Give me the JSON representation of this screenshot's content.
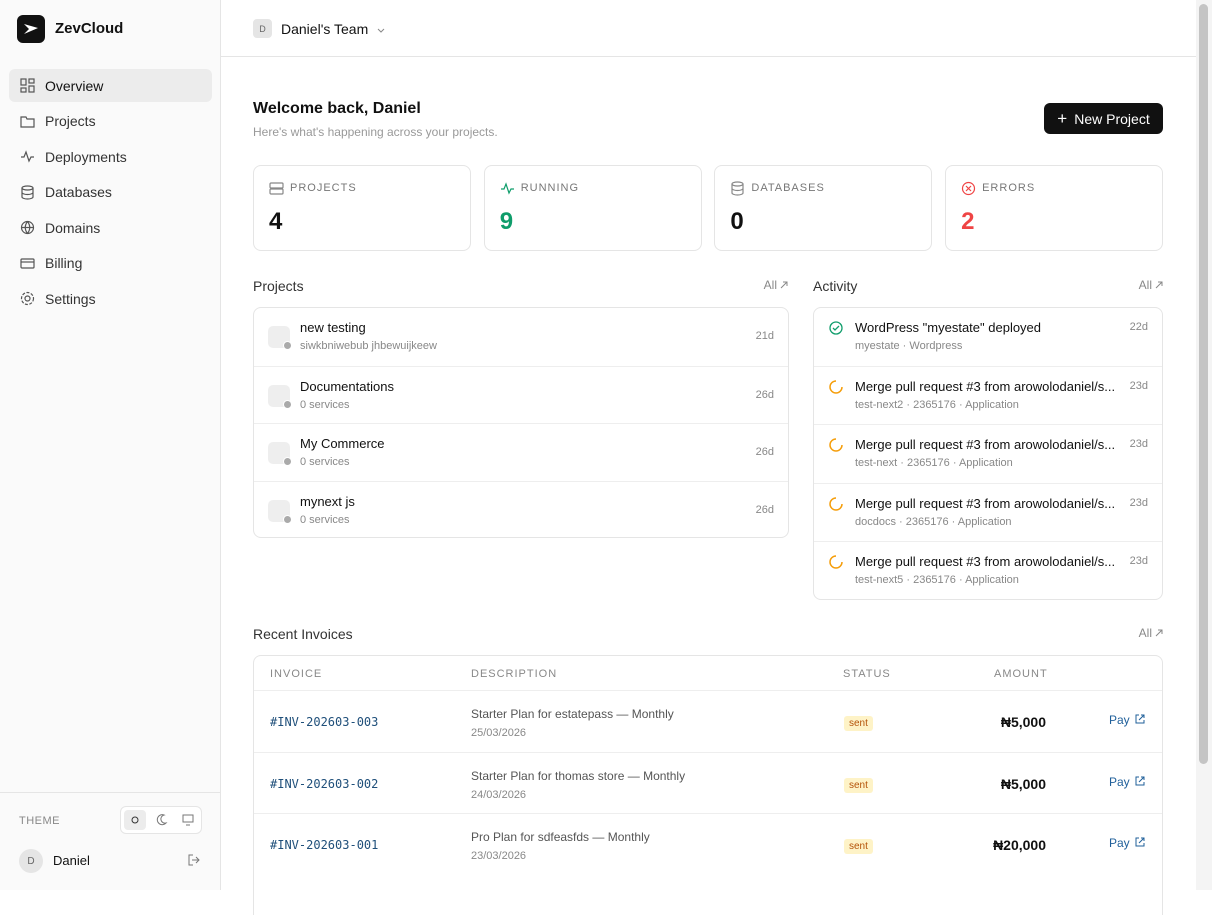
{
  "brand": "ZevCloud",
  "nav": [
    "Overview",
    "Projects",
    "Deployments",
    "Databases",
    "Domains",
    "Billing",
    "Settings"
  ],
  "theme_label": "THEME",
  "user": {
    "initial": "D",
    "name": "Daniel"
  },
  "team": {
    "initial": "D",
    "name": "Daniel's Team"
  },
  "header": {
    "title": "Welcome back, Daniel",
    "subtitle": "Here's what's happening across your projects.",
    "button": "New Project"
  },
  "stats": [
    {
      "label": "PROJECTS",
      "value": 4,
      "color": "#111111"
    },
    {
      "label": "RUNNING",
      "value": 9,
      "color": "#0f9d6b"
    },
    {
      "label": "DATABASES",
      "value": 0,
      "color": "#111111"
    },
    {
      "label": "ERRORS",
      "value": 2,
      "color": "#ef4444"
    }
  ],
  "projects": {
    "title": "Projects",
    "link": "All",
    "items": [
      {
        "name": "new testing",
        "sub": "siwkbniwebub jhbewuijkeew",
        "age": "21d"
      },
      {
        "name": "Documentations",
        "sub": "0 services",
        "age": "26d"
      },
      {
        "name": "My Commerce",
        "sub": "0 services",
        "age": "26d"
      },
      {
        "name": "mynext js",
        "sub": "0 services",
        "age": "26d"
      }
    ]
  },
  "activity": {
    "title": "Activity",
    "link": "All",
    "items": [
      {
        "title": "WordPress \"myestate\" deployed",
        "sub": "myestate · Wordpress",
        "age": "22d"
      },
      {
        "title": "Merge pull request #3 from arowolodaniel/s...",
        "sub": "test-next2 · 2365176 · Application",
        "age": "23d"
      },
      {
        "title": "Merge pull request #3 from arowolodaniel/s...",
        "sub": "test-next · 2365176 · Application",
        "age": "23d"
      },
      {
        "title": "Merge pull request #3 from arowolodaniel/s...",
        "sub": "docdocs · 2365176 · Application",
        "age": "23d"
      },
      {
        "title": "Merge pull request #3 from arowolodaniel/s...",
        "sub": "test-next5 · 2365176 · Application",
        "age": "23d"
      }
    ]
  },
  "invoices": {
    "title": "Recent Invoices",
    "link": "All",
    "columns": [
      "INVOICE",
      "DESCRIPTION",
      "STATUS",
      "AMOUNT"
    ],
    "rows": [
      {
        "id": "#INV-202603-003",
        "description": "Starter Plan for estatepass — Monthly",
        "date": "25/03/2026",
        "status": "sent",
        "amount": "₦5,000",
        "action": "Pay"
      },
      {
        "id": "#INV-202603-002",
        "description": "Starter Plan for thomas store — Monthly",
        "date": "24/03/2026",
        "status": "sent",
        "amount": "₦5,000",
        "action": "Pay"
      },
      {
        "id": "#INV-202603-001",
        "description": "Pro Plan for sdfeasfds — Monthly",
        "date": "23/03/2026",
        "status": "sent",
        "amount": "₦20,000",
        "action": "Pay"
      }
    ]
  }
}
